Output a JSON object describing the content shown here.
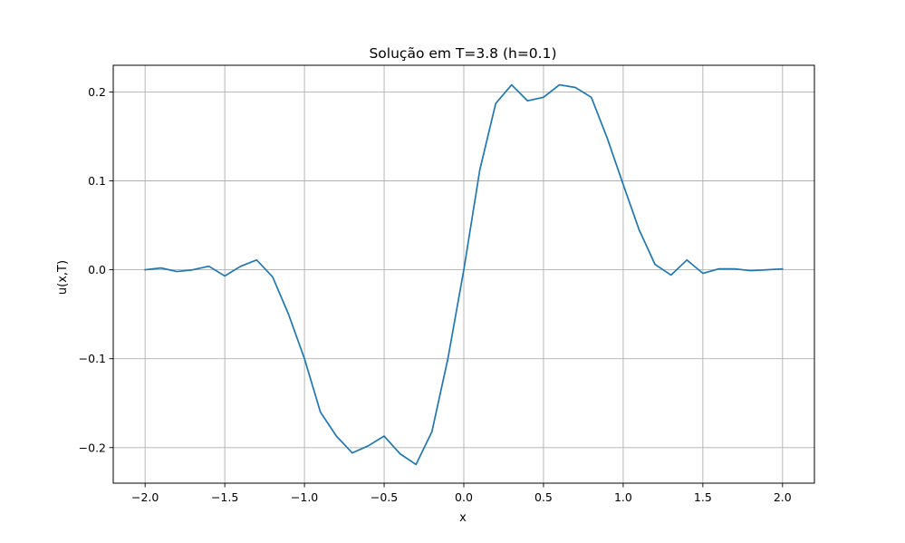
{
  "chart_data": {
    "type": "line",
    "title": "Solução em T=3.8 (h=0.1)",
    "xlabel": "x",
    "ylabel": "u(x,T)",
    "xlim": [
      -2.2,
      2.2
    ],
    "ylim": [
      -0.24,
      0.23
    ],
    "xticks": [
      -2.0,
      -1.5,
      -1.0,
      -0.5,
      0.0,
      0.5,
      1.0,
      1.5,
      2.0
    ],
    "xtick_labels": [
      "−2.0",
      "−1.5",
      "−1.0",
      "−0.5",
      "0.0",
      "0.5",
      "1.0",
      "1.5",
      "2.0"
    ],
    "yticks": [
      -0.2,
      -0.1,
      0.0,
      0.1,
      0.2
    ],
    "ytick_labels": [
      "−0.2",
      "−0.1",
      "0.0",
      "0.1",
      "0.2"
    ],
    "grid": true,
    "series": [
      {
        "color": "#1f77b4",
        "x": [
          -2.0,
          -1.9,
          -1.8,
          -1.7,
          -1.6,
          -1.5,
          -1.4,
          -1.3,
          -1.2,
          -1.1,
          -1.0,
          -0.9,
          -0.8,
          -0.7,
          -0.6,
          -0.5,
          -0.4,
          -0.3,
          -0.2,
          -0.1,
          0.0,
          0.1,
          0.2,
          0.3,
          0.4,
          0.5,
          0.6,
          0.7,
          0.8,
          0.9,
          1.0,
          1.1,
          1.2,
          1.3,
          1.4,
          1.5,
          1.6,
          1.7,
          1.8,
          1.9,
          2.0
        ],
        "y": [
          0.0,
          0.002,
          -0.002,
          0.0,
          0.004,
          -0.007,
          0.004,
          0.011,
          -0.008,
          -0.05,
          -0.1,
          -0.16,
          -0.187,
          -0.206,
          -0.198,
          -0.187,
          -0.207,
          -0.219,
          -0.182,
          -0.1,
          0.0,
          0.112,
          0.187,
          0.208,
          0.19,
          0.194,
          0.208,
          0.205,
          0.194,
          0.148,
          0.096,
          0.045,
          0.006,
          -0.006,
          0.011,
          -0.004,
          0.001,
          0.001,
          -0.001,
          0.0,
          0.001
        ]
      }
    ]
  }
}
